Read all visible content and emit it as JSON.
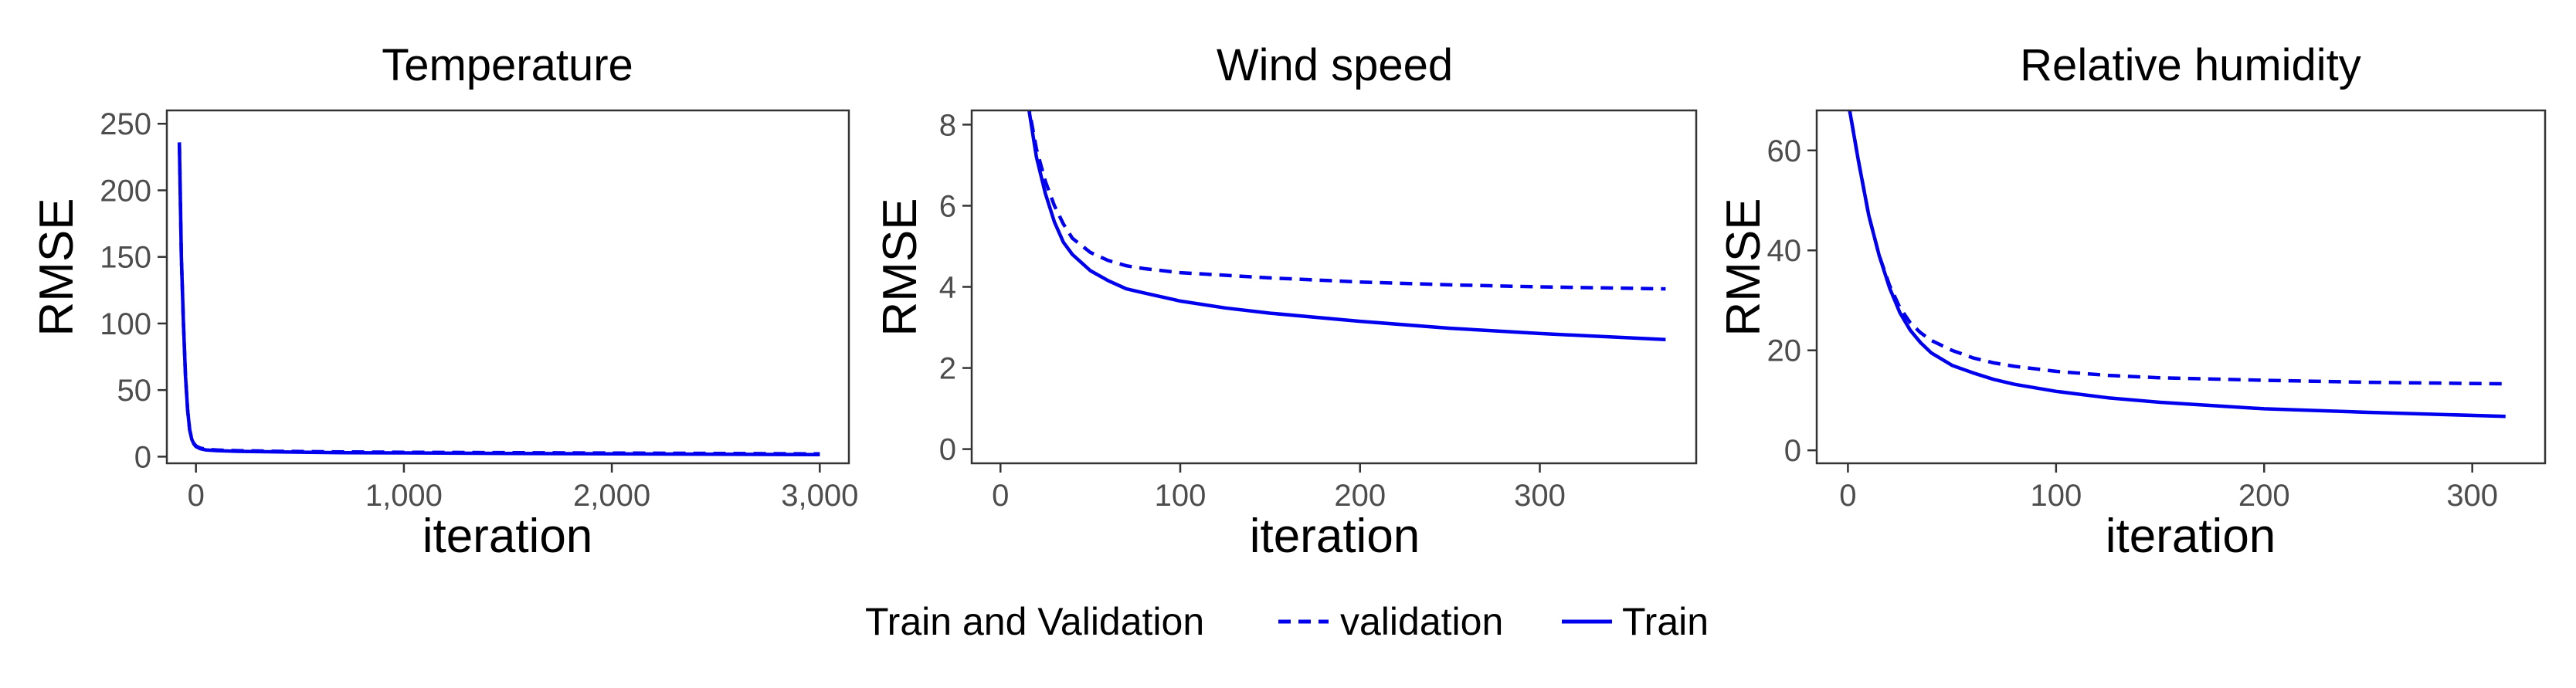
{
  "chart_data": [
    {
      "type": "line",
      "title": "Temperature",
      "xlabel": "iteration",
      "ylabel": "RMSE",
      "xlim": [
        -140,
        3140
      ],
      "ylim": [
        -5,
        260
      ],
      "x_ticks": [
        0,
        1000,
        2000,
        3000
      ],
      "x_tick_labels": [
        "0",
        "1,000",
        "2,000",
        "3,000"
      ],
      "y_ticks": [
        0,
        50,
        100,
        150,
        200,
        250
      ],
      "y_tick_labels": [
        "0",
        "50",
        "100",
        "150",
        "200",
        "250"
      ],
      "series": [
        {
          "name": "Train",
          "style": "solid",
          "x": [
            -80,
            -70,
            -60,
            -50,
            -40,
            -30,
            -20,
            -10,
            0,
            20,
            50,
            100,
            200,
            400,
            700,
            1000,
            1500,
            2000,
            2500,
            3000
          ],
          "y": [
            236,
            150,
            100,
            60,
            35,
            20,
            13,
            9.5,
            7.5,
            6,
            5,
            4.5,
            4,
            3.5,
            3,
            2.8,
            2.4,
            2.1,
            1.8,
            1.5
          ]
        },
        {
          "name": "validation",
          "style": "dashed",
          "x": [
            -80,
            -70,
            -60,
            -50,
            -40,
            -30,
            -20,
            -10,
            0,
            20,
            50,
            100,
            200,
            400,
            700,
            1000,
            1500,
            2000,
            2500,
            3000
          ],
          "y": [
            236,
            150,
            100,
            60,
            35,
            20,
            13.5,
            10,
            8,
            6.5,
            5.5,
            5,
            4.5,
            4,
            3.6,
            3.3,
            3,
            2.7,
            2.4,
            2.1
          ]
        }
      ]
    },
    {
      "type": "line",
      "title": "Wind speed",
      "xlabel": "iteration",
      "ylabel": "RMSE",
      "xlim": [
        -16,
        387
      ],
      "ylim": [
        -0.35,
        8.35
      ],
      "x_ticks": [
        0,
        100,
        200,
        300
      ],
      "x_tick_labels": [
        "0",
        "100",
        "200",
        "300"
      ],
      "y_ticks": [
        0,
        2,
        4,
        6,
        8
      ],
      "y_tick_labels": [
        "0",
        "2",
        "4",
        "6",
        "8"
      ],
      "series": [
        {
          "name": "validation",
          "style": "dashed",
          "x": [
            15,
            20,
            25,
            30,
            35,
            40,
            50,
            60,
            70,
            80,
            100,
            150,
            200,
            250,
            300,
            370
          ],
          "y": [
            8.6,
            7.4,
            6.6,
            6.0,
            5.55,
            5.2,
            4.85,
            4.65,
            4.52,
            4.45,
            4.35,
            4.22,
            4.12,
            4.05,
            4.0,
            3.95
          ]
        },
        {
          "name": "Train",
          "style": "solid",
          "x": [
            15,
            20,
            25,
            30,
            35,
            40,
            50,
            60,
            70,
            80,
            100,
            125,
            150,
            200,
            250,
            300,
            370
          ],
          "y": [
            8.6,
            7.2,
            6.3,
            5.6,
            5.1,
            4.8,
            4.4,
            4.15,
            3.95,
            3.85,
            3.65,
            3.48,
            3.35,
            3.15,
            2.98,
            2.85,
            2.7
          ]
        }
      ]
    },
    {
      "type": "line",
      "title": "Relative humidity",
      "xlabel": "iteration",
      "ylabel": "RMSE",
      "xlim": [
        -15,
        335
      ],
      "ylim": [
        -2.6,
        68
      ],
      "x_ticks": [
        0,
        100,
        200,
        300
      ],
      "x_tick_labels": [
        "0",
        "100",
        "200",
        "300"
      ],
      "y_ticks": [
        0,
        20,
        40,
        60
      ],
      "y_tick_labels": [
        "0",
        "20",
        "40",
        "60"
      ],
      "series": [
        {
          "name": "validation",
          "style": "dashed",
          "x": [
            0,
            5,
            10,
            15,
            20,
            25,
            30,
            35,
            40,
            50,
            60,
            70,
            80,
            100,
            125,
            150,
            200,
            250,
            316
          ],
          "y": [
            70,
            58,
            47,
            39,
            33,
            28.5,
            25.5,
            23.5,
            22,
            20,
            18.5,
            17.5,
            16.8,
            15.8,
            15,
            14.5,
            14,
            13.6,
            13.3
          ]
        },
        {
          "name": "Train",
          "style": "solid",
          "x": [
            0,
            5,
            10,
            15,
            20,
            25,
            30,
            35,
            40,
            50,
            60,
            70,
            80,
            100,
            125,
            150,
            200,
            250,
            316
          ],
          "y": [
            70,
            58,
            47,
            39,
            32.5,
            27.5,
            24,
            21.5,
            19.5,
            17,
            15.5,
            14.2,
            13.2,
            11.8,
            10.5,
            9.6,
            8.3,
            7.6,
            6.8
          ]
        }
      ]
    }
  ],
  "legend": {
    "title": "Train and Validation",
    "items": [
      {
        "label": "validation",
        "style": "dashed"
      },
      {
        "label": "Train",
        "style": "solid"
      }
    ]
  },
  "colors": {
    "line": "#0000ee",
    "panel_border": "#333333",
    "tick": "#333333"
  }
}
